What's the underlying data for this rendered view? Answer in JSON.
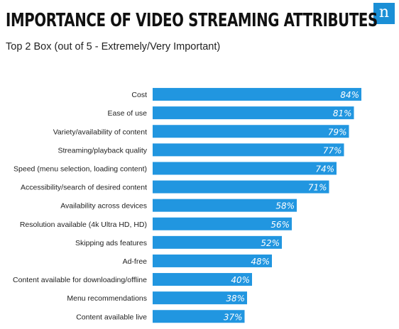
{
  "header": {
    "title": "IMPORTANCE OF VIDEO STREAMING ATTRIBUTES",
    "subtitle": "Top 2 Box (out of 5 - Extremely/Very Important)",
    "logo_text": "n"
  },
  "colors": {
    "bar": "#2196e0",
    "label_text": "#ffffff",
    "category_text": "#222222",
    "logo": "#1a8fd6"
  },
  "chart_data": {
    "type": "bar",
    "orientation": "horizontal",
    "title": "IMPORTANCE OF VIDEO STREAMING ATTRIBUTES",
    "subtitle": "Top 2 Box (out of 5 - Extremely/Very Important)",
    "xlabel": "",
    "ylabel": "",
    "xlim": [
      0,
      100
    ],
    "grid": false,
    "categories": [
      "Cost",
      "Ease of use",
      "Variety/availability of content",
      "Streaming/playback quality",
      "Speed (menu selection, loading content)",
      "Accessibility/search of desired content",
      "Availability across devices",
      "Resolution available (4k Ultra HD, HD)",
      "Skipping ads features",
      "Ad-free",
      "Content available for downloading/offline",
      "Menu recommendations",
      "Content available live"
    ],
    "values": [
      84,
      81,
      79,
      77,
      74,
      71,
      58,
      56,
      52,
      48,
      40,
      38,
      37
    ],
    "data_labels": [
      "84%",
      "81%",
      "79%",
      "77%",
      "74%",
      "71%",
      "58%",
      "56%",
      "52%",
      "48%",
      "40%",
      "38%",
      "37%"
    ]
  }
}
